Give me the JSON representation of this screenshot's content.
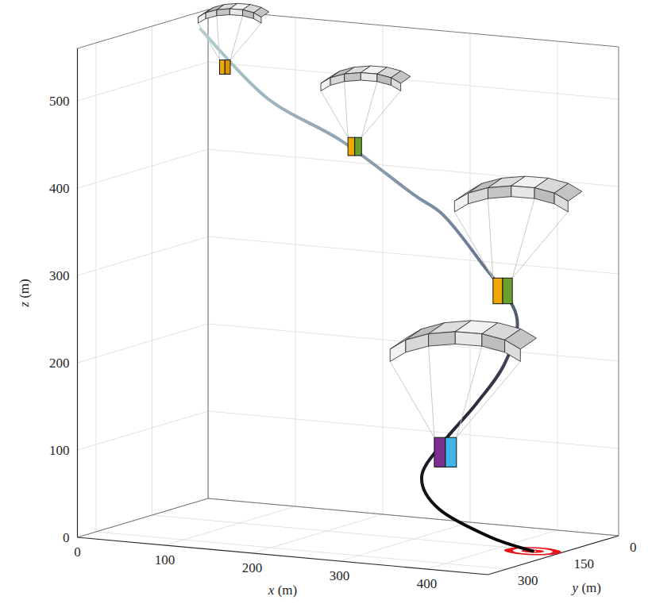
{
  "chart_data": {
    "type": "line3d",
    "xlabel": "x (m)",
    "ylabel": "y (m)",
    "zlabel": "z (m)",
    "xlim": [
      0,
      470
    ],
    "ylim": [
      0,
      350
    ],
    "zlim": [
      0,
      560
    ],
    "xticks": [
      0,
      100,
      200,
      300,
      400
    ],
    "yticks": [
      0,
      150,
      300
    ],
    "zticks": [
      0,
      100,
      200,
      300,
      400,
      500
    ],
    "grid": true,
    "series": [
      {
        "x": [
          0,
          80,
          170,
          260,
          300,
          350,
          400,
          400,
          380,
          350,
          330,
          350,
          400,
          440
        ],
        "y": [
          20,
          30,
          40,
          60,
          70,
          90,
          110,
          140,
          170,
          190,
          200,
          200,
          180,
          160
        ],
        "z": [
          540,
          470,
          430,
          380,
          360,
          315,
          260,
          210,
          165,
          120,
          80,
          45,
          15,
          0
        ]
      }
    ],
    "payloads": {
      "x": [
        30,
        185,
        380,
        355
      ],
      "y": [
        25,
        40,
        100,
        195
      ],
      "z": [
        500,
        425,
        285,
        110
      ]
    },
    "target": {
      "x": 440,
      "y": 160
    }
  }
}
